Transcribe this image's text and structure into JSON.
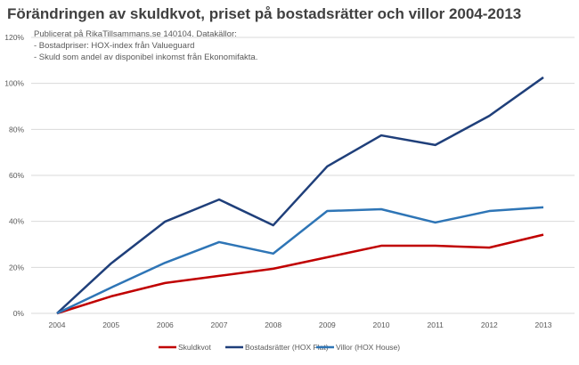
{
  "chart_data": {
    "type": "line",
    "title": "Förändringen av skuldkvot, priset på bostadsrätter och villor 2004-2013",
    "annotation": [
      "Publicerat på RikaTillsammans.se 140104. Datakällor:",
      "- Bostadpriser: HOX-index från Valueguard",
      "- Skuld som andel av disponibel inkomst från Ekonomifakta."
    ],
    "xlabel": "",
    "ylabel": "",
    "x": [
      "2004",
      "2005",
      "2006",
      "2007",
      "2008",
      "2009",
      "2010",
      "2011",
      "2012",
      "2013"
    ],
    "ylim": [
      0,
      120
    ],
    "yticks": [
      "0%",
      "20%",
      "40%",
      "60%",
      "80%",
      "100%",
      "120%"
    ],
    "grid": true,
    "legend": "bottom",
    "series": [
      {
        "name": "Skuldkvot",
        "color": "#c00000",
        "values": [
          0,
          7.4,
          13.2,
          16.3,
          19.4,
          24.4,
          29.4,
          29.4,
          28.6,
          34.2
        ]
      },
      {
        "name": "Bostadsrätter (HOX Flat)",
        "color": "#1f3f7a",
        "values": [
          0,
          21.7,
          39.9,
          49.5,
          38.3,
          63.9,
          77.4,
          73.2,
          85.9,
          102.6
        ]
      },
      {
        "name": "Villor (HOX House)",
        "color": "#2e75b6",
        "values": [
          0,
          11.2,
          22.0,
          31.0,
          26.0,
          44.5,
          45.3,
          39.5,
          44.5,
          46.1
        ]
      }
    ]
  }
}
